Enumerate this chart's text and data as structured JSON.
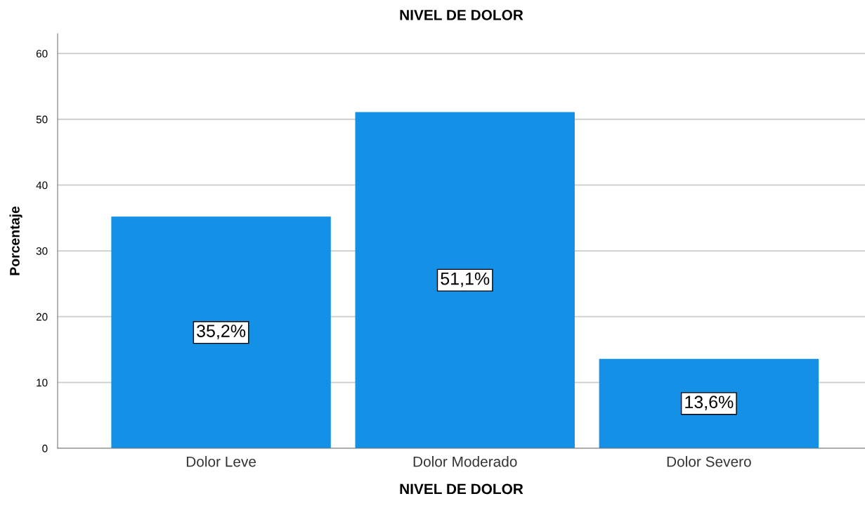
{
  "chart_data": {
    "type": "bar",
    "title": "NIVEL DE DOLOR",
    "xlabel": "NIVEL DE DOLOR",
    "ylabel": "Porcentaje",
    "categories": [
      "Dolor Leve",
      "Dolor Moderado",
      "Dolor Severo"
    ],
    "values": [
      35.2,
      51.1,
      13.6
    ],
    "value_labels": [
      "35,2%",
      "51,1%",
      "13,6%"
    ],
    "color": "#1490e6",
    "ylim": [
      0,
      63
    ],
    "yticks": [
      0,
      10,
      20,
      30,
      40,
      50,
      60
    ],
    "grid": "y",
    "legend": false
  }
}
